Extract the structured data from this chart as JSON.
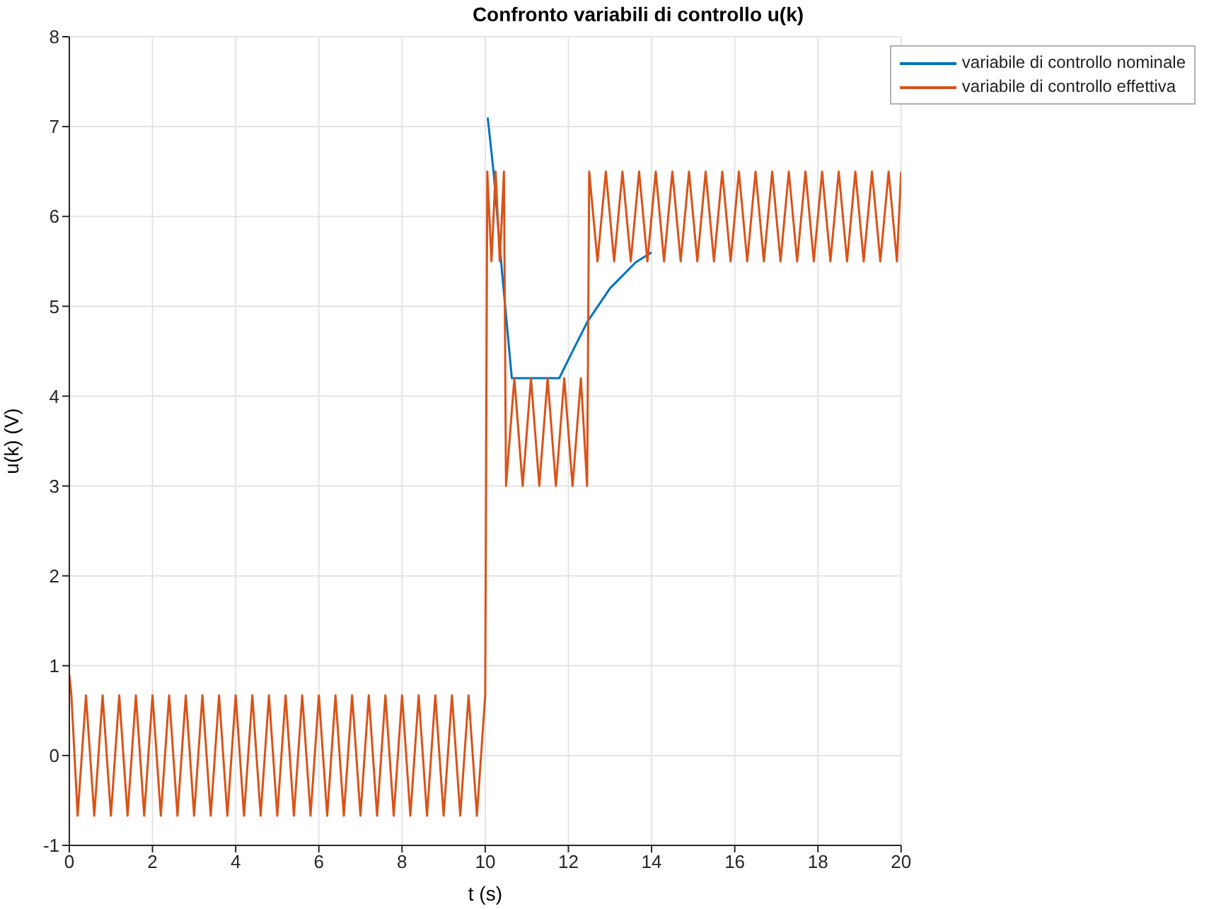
{
  "chart_data": {
    "type": "line",
    "title": "Confronto variabili di controllo u(k)",
    "xlabel": "t (s)",
    "ylabel": "u(k) (V)",
    "xlim": [
      0,
      20
    ],
    "xticks": [
      0,
      2,
      4,
      6,
      8,
      10,
      12,
      14,
      16,
      18,
      20
    ],
    "ylim": [
      -1,
      8
    ],
    "yticks": [
      -1,
      0,
      1,
      2,
      3,
      4,
      5,
      6,
      7,
      8
    ],
    "grid": true,
    "legend": "top right",
    "series": [
      {
        "name": "variabile di controllo nominale",
        "color": "#0072bd",
        "x": [
          10.06,
          10.2,
          10.4,
          10.64,
          11.78,
          12.1,
          12.46,
          13,
          13.62,
          14
        ],
        "values": [
          7.1,
          6.5,
          5.4,
          4.2,
          4.2,
          4.5,
          4.83,
          5.2,
          5.49,
          5.6
        ]
      },
      {
        "name": "variabile di controllo effettiva",
        "color": "#d95319",
        "x": [
          0,
          0.05,
          0.2,
          0.4,
          0.6,
          0.8,
          1,
          1.2,
          1.4,
          1.6,
          1.8,
          2,
          2.2,
          2.4,
          2.6,
          2.8,
          3,
          3.2,
          3.4,
          3.6,
          3.8,
          4,
          4.2,
          4.4,
          4.6,
          4.8,
          5,
          5.2,
          5.4,
          5.6,
          5.8,
          6,
          6.2,
          6.4,
          6.6,
          6.8,
          7,
          7.2,
          7.4,
          7.6,
          7.8,
          8,
          8.2,
          8.4,
          8.6,
          8.8,
          9,
          9.2,
          9.4,
          9.6,
          9.8,
          10,
          10.05,
          10.15,
          10.25,
          10.35,
          10.45,
          10.5,
          10.7,
          10.9,
          11.1,
          11.3,
          11.5,
          11.7,
          11.9,
          12.1,
          12.3,
          12.45,
          12.5,
          12.7,
          12.9,
          13.1,
          13.3,
          13.5,
          13.7,
          13.9,
          14.1,
          14.3,
          14.5,
          14.7,
          14.9,
          15.1,
          15.3,
          15.5,
          15.7,
          15.9,
          16.1,
          16.3,
          16.5,
          16.7,
          16.9,
          17.1,
          17.3,
          17.5,
          17.7,
          17.9,
          18.1,
          18.3,
          18.5,
          18.7,
          18.9,
          19.1,
          19.3,
          19.5,
          19.7,
          19.9,
          20
        ],
        "values": [
          0.9,
          0.67,
          -0.67,
          0.67,
          -0.67,
          0.67,
          -0.67,
          0.67,
          -0.67,
          0.67,
          -0.67,
          0.67,
          -0.67,
          0.67,
          -0.67,
          0.67,
          -0.67,
          0.67,
          -0.67,
          0.67,
          -0.67,
          0.67,
          -0.67,
          0.67,
          -0.67,
          0.67,
          -0.67,
          0.67,
          -0.67,
          0.67,
          -0.67,
          0.67,
          -0.67,
          0.67,
          -0.67,
          0.67,
          -0.67,
          0.67,
          -0.67,
          0.67,
          -0.67,
          0.67,
          -0.67,
          0.67,
          -0.67,
          0.67,
          -0.67,
          0.67,
          -0.67,
          0.67,
          -0.67,
          0.67,
          6.5,
          5.5,
          6.5,
          5.5,
          6.5,
          3,
          4.2,
          3,
          4.2,
          3,
          4.2,
          3,
          4.2,
          3,
          4.2,
          3,
          6.5,
          5.5,
          6.5,
          5.5,
          6.5,
          5.5,
          6.5,
          5.5,
          6.5,
          5.5,
          6.5,
          5.5,
          6.5,
          5.5,
          6.5,
          5.5,
          6.5,
          5.5,
          6.5,
          5.5,
          6.5,
          5.5,
          6.5,
          5.5,
          6.5,
          5.5,
          6.5,
          5.5,
          6.5,
          5.5,
          6.5,
          5.5,
          6.5,
          5.5,
          6.5,
          5.5,
          6.5,
          5.5,
          6.5
        ]
      }
    ]
  }
}
